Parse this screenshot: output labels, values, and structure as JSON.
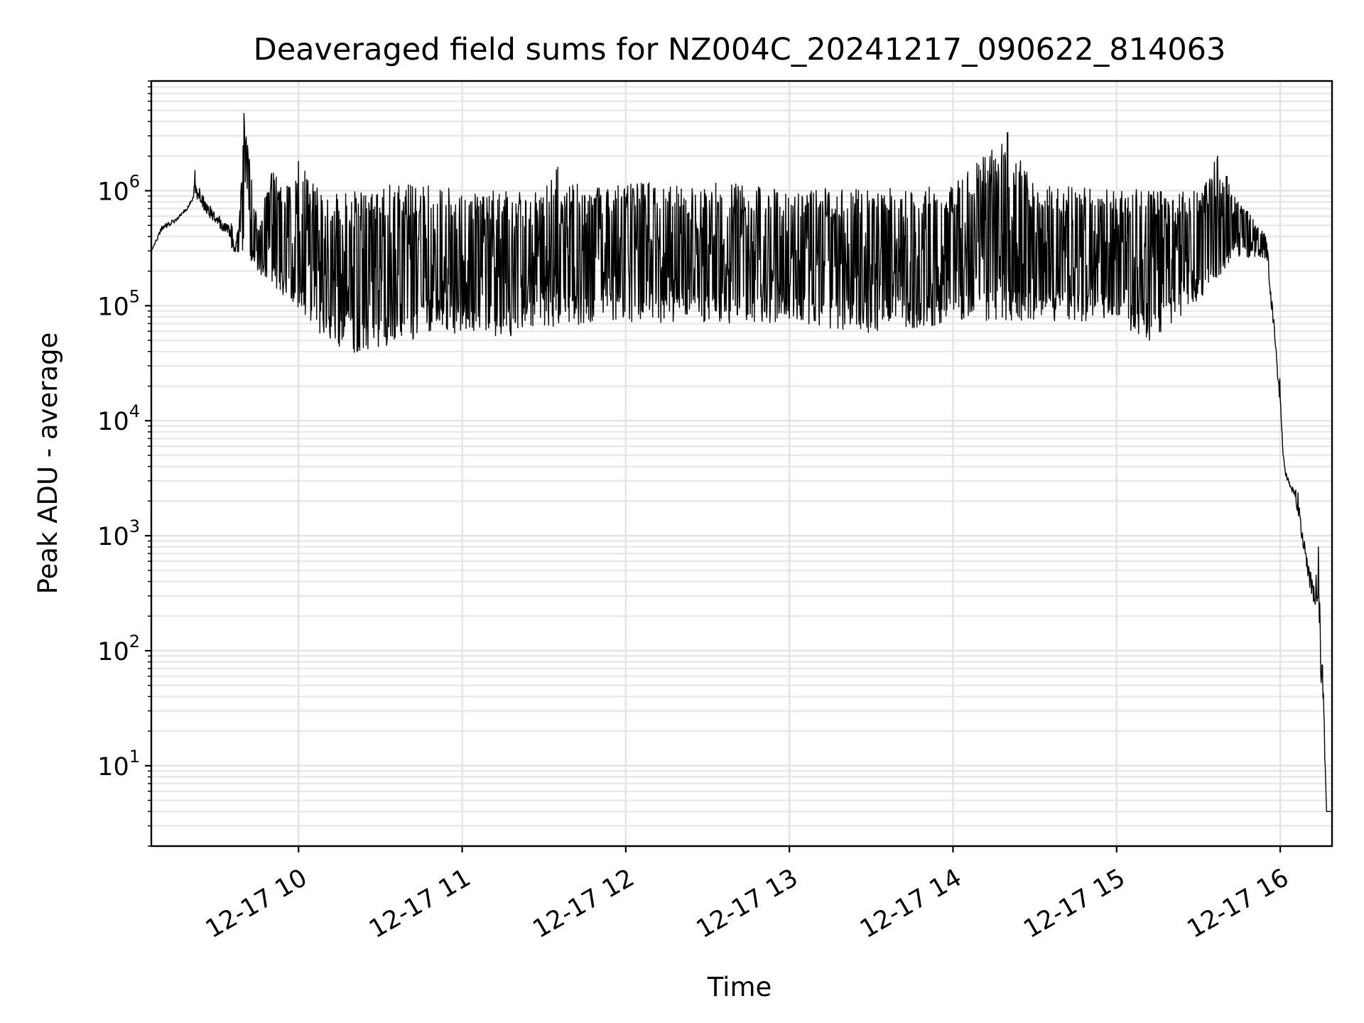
{
  "chart_data": {
    "type": "line",
    "title": "Deaveraged field sums for NZ004C_20241217_090622_814063",
    "xlabel": "Time",
    "ylabel": "Peak ADU - average",
    "y_scale": "log",
    "ylim": [
      2,
      9000000
    ],
    "xlim": [
      "2024-12-17 09:06",
      "2024-12-17 16:19"
    ],
    "grid": true,
    "legend": "none",
    "line_color": "#000000",
    "x_ticks": [
      {
        "t": "2024-12-17 10:00",
        "label": "12-17 10"
      },
      {
        "t": "2024-12-17 11:00",
        "label": "12-17 11"
      },
      {
        "t": "2024-12-17 12:00",
        "label": "12-17 12"
      },
      {
        "t": "2024-12-17 13:00",
        "label": "12-17 13"
      },
      {
        "t": "2024-12-17 14:00",
        "label": "12-17 14"
      },
      {
        "t": "2024-12-17 15:00",
        "label": "12-17 15"
      },
      {
        "t": "2024-12-17 16:00",
        "label": "12-17 16"
      }
    ],
    "y_ticks": [
      {
        "value": 10,
        "base": "10",
        "exp": "1"
      },
      {
        "value": 100,
        "base": "10",
        "exp": "2"
      },
      {
        "value": 1000,
        "base": "10",
        "exp": "3"
      },
      {
        "value": 10000,
        "base": "10",
        "exp": "4"
      },
      {
        "value": 100000,
        "base": "10",
        "exp": "5"
      },
      {
        "value": 1000000,
        "base": "10",
        "exp": "6"
      }
    ],
    "series": [
      {
        "upper_envelope": [
          [
            "2024-12-17 09:06",
            300000
          ],
          [
            "2024-12-17 09:10",
            550000
          ],
          [
            "2024-12-17 09:15",
            600000
          ],
          [
            "2024-12-17 09:20",
            800000
          ],
          [
            "2024-12-17 09:22",
            1500000
          ],
          [
            "2024-12-17 09:26",
            980000
          ],
          [
            "2024-12-17 09:32",
            650000
          ],
          [
            "2024-12-17 09:38",
            450000
          ],
          [
            "2024-12-17 09:40",
            4700000
          ],
          [
            "2024-12-17 09:45",
            500000
          ],
          [
            "2024-12-17 09:50",
            1500000
          ],
          [
            "2024-12-17 09:55",
            1200000
          ],
          [
            "2024-12-17 10:00",
            1800000
          ],
          [
            "2024-12-17 10:10",
            900000
          ],
          [
            "2024-12-17 10:20",
            1000000
          ],
          [
            "2024-12-17 10:30",
            1100000
          ],
          [
            "2024-12-17 10:45",
            1200000
          ],
          [
            "2024-12-17 11:00",
            1000000
          ],
          [
            "2024-12-17 11:15",
            1000000
          ],
          [
            "2024-12-17 11:30",
            1000000
          ],
          [
            "2024-12-17 11:35",
            1600000
          ],
          [
            "2024-12-17 11:45",
            1000000
          ],
          [
            "2024-12-17 12:00",
            1200000
          ],
          [
            "2024-12-17 12:30",
            1200000
          ],
          [
            "2024-12-17 13:00",
            1050000
          ],
          [
            "2024-12-17 13:30",
            1050000
          ],
          [
            "2024-12-17 14:00",
            1100000
          ],
          [
            "2024-12-17 14:20",
            3200000
          ],
          [
            "2024-12-17 14:30",
            1100000
          ],
          [
            "2024-12-17 15:00",
            1050000
          ],
          [
            "2024-12-17 15:15",
            1000000
          ],
          [
            "2024-12-17 15:30",
            1000000
          ],
          [
            "2024-12-17 15:37",
            2000000
          ],
          [
            "2024-12-17 15:45",
            850000
          ],
          [
            "2024-12-17 15:55",
            400000
          ],
          [
            "2024-12-17 16:00",
            30000
          ],
          [
            "2024-12-17 16:01",
            5000
          ],
          [
            "2024-12-17 16:04",
            3000
          ],
          [
            "2024-12-17 16:07",
            3000
          ],
          [
            "2024-12-17 16:09",
            1000
          ],
          [
            "2024-12-17 16:12",
            500
          ],
          [
            "2024-12-17 16:14",
            800
          ],
          [
            "2024-12-17 16:16",
            80
          ],
          [
            "2024-12-17 16:17",
            4
          ],
          [
            "2024-12-17 16:19",
            4
          ]
        ],
        "lower_envelope": [
          [
            "2024-12-17 09:06",
            300000
          ],
          [
            "2024-12-17 09:20",
            650000
          ],
          [
            "2024-12-17 09:30",
            350000
          ],
          [
            "2024-12-17 09:40",
            250000
          ],
          [
            "2024-12-17 09:50",
            140000
          ],
          [
            "2024-12-17 10:00",
            80000
          ],
          [
            "2024-12-17 10:10",
            40000
          ],
          [
            "2024-12-17 10:20",
            32000
          ],
          [
            "2024-12-17 10:30",
            35000
          ],
          [
            "2024-12-17 10:45",
            45000
          ],
          [
            "2024-12-17 11:00",
            50000
          ],
          [
            "2024-12-17 11:15",
            45000
          ],
          [
            "2024-12-17 11:30",
            55000
          ],
          [
            "2024-12-17 11:45",
            60000
          ],
          [
            "2024-12-17 12:00",
            60000
          ],
          [
            "2024-12-17 12:30",
            60000
          ],
          [
            "2024-12-17 13:00",
            60000
          ],
          [
            "2024-12-17 13:30",
            50000
          ],
          [
            "2024-12-17 14:00",
            60000
          ],
          [
            "2024-12-17 14:30",
            60000
          ],
          [
            "2024-12-17 15:00",
            65000
          ],
          [
            "2024-12-17 15:12",
            40000
          ],
          [
            "2024-12-17 15:30",
            90000
          ],
          [
            "2024-12-17 15:45",
            250000
          ],
          [
            "2024-12-17 15:55",
            250000
          ],
          [
            "2024-12-17 16:00",
            10000
          ],
          [
            "2024-12-17 16:02",
            3000
          ],
          [
            "2024-12-17 16:05",
            2000
          ],
          [
            "2024-12-17 16:08",
            700
          ],
          [
            "2024-12-17 16:11",
            250
          ],
          [
            "2024-12-17 16:14",
            150
          ],
          [
            "2024-12-17 16:15",
            30
          ],
          [
            "2024-12-17 16:17",
            4
          ],
          [
            "2024-12-17 16:19",
            4
          ]
        ]
      }
    ]
  }
}
